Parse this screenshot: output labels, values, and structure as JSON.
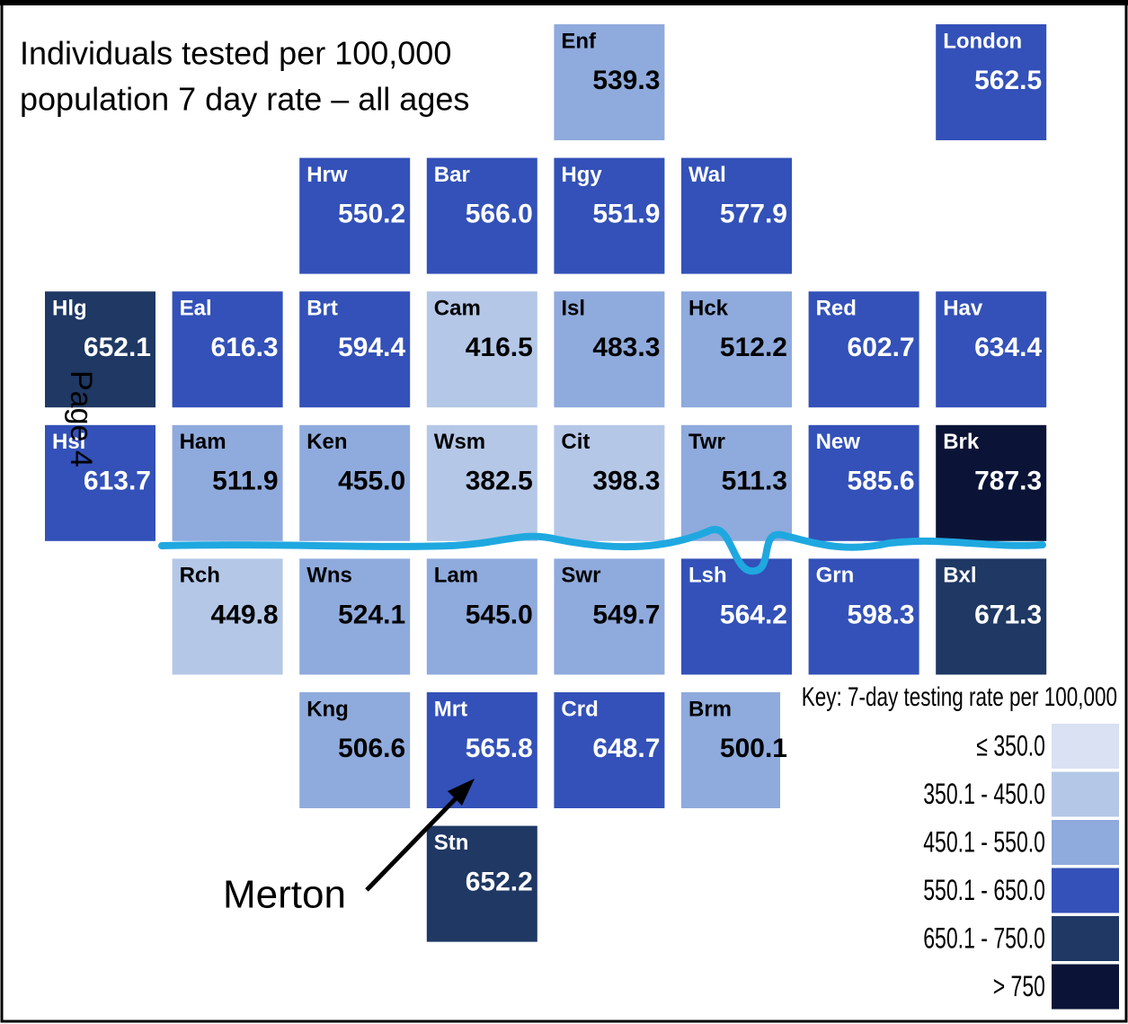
{
  "title": [
    "Individuals tested per 100,000",
    "population 7 day rate – all ages"
  ],
  "page_label": "Page 4",
  "annotation": "Merton",
  "tiles": [
    {
      "code": "Enf",
      "value": "539.3",
      "col": 4,
      "row": 0,
      "color": "#8faadc"
    },
    {
      "code": "London",
      "value": "562.5",
      "col": 7,
      "row": 0,
      "color": "#3351b8"
    },
    {
      "code": "Hrw",
      "value": "550.2",
      "col": 2,
      "row": 1,
      "color": "#3351b8"
    },
    {
      "code": "Bar",
      "value": "566.0",
      "col": 3,
      "row": 1,
      "color": "#3351b8"
    },
    {
      "code": "Hgy",
      "value": "551.9",
      "col": 4,
      "row": 1,
      "color": "#3351b8"
    },
    {
      "code": "Wal",
      "value": "577.9",
      "col": 5,
      "row": 1,
      "color": "#3351b8"
    },
    {
      "code": "Hlg",
      "value": "652.1",
      "col": 0,
      "row": 2,
      "color": "#1f3864"
    },
    {
      "code": "Eal",
      "value": "616.3",
      "col": 1,
      "row": 2,
      "color": "#3351b8"
    },
    {
      "code": "Brt",
      "value": "594.4",
      "col": 2,
      "row": 2,
      "color": "#3351b8"
    },
    {
      "code": "Cam",
      "value": "416.5",
      "col": 3,
      "row": 2,
      "color": "#b4c7e7"
    },
    {
      "code": "Isl",
      "value": "483.3",
      "col": 4,
      "row": 2,
      "color": "#8faadc"
    },
    {
      "code": "Hck",
      "value": "512.2",
      "col": 5,
      "row": 2,
      "color": "#8faadc"
    },
    {
      "code": "Red",
      "value": "602.7",
      "col": 6,
      "row": 2,
      "color": "#3351b8"
    },
    {
      "code": "Hav",
      "value": "634.4",
      "col": 7,
      "row": 2,
      "color": "#3351b8"
    },
    {
      "code": "Hsl",
      "value": "613.7",
      "col": 0,
      "row": 3,
      "color": "#3351b8"
    },
    {
      "code": "Ham",
      "value": "511.9",
      "col": 1,
      "row": 3,
      "color": "#8faadc"
    },
    {
      "code": "Ken",
      "value": "455.0",
      "col": 2,
      "row": 3,
      "color": "#8faadc"
    },
    {
      "code": "Wsm",
      "value": "382.5",
      "col": 3,
      "row": 3,
      "color": "#b4c7e7"
    },
    {
      "code": "Cit",
      "value": "398.3",
      "col": 4,
      "row": 3,
      "color": "#b4c7e7"
    },
    {
      "code": "Twr",
      "value": "511.3",
      "col": 5,
      "row": 3,
      "color": "#8faadc"
    },
    {
      "code": "New",
      "value": "585.6",
      "col": 6,
      "row": 3,
      "color": "#3351b8"
    },
    {
      "code": "Brk",
      "value": "787.3",
      "col": 7,
      "row": 3,
      "color": "#0b1437"
    },
    {
      "code": "Rch",
      "value": "449.8",
      "col": 1,
      "row": 4,
      "color": "#b4c7e7"
    },
    {
      "code": "Wns",
      "value": "524.1",
      "col": 2,
      "row": 4,
      "color": "#8faadc"
    },
    {
      "code": "Lam",
      "value": "545.0",
      "col": 3,
      "row": 4,
      "color": "#8faadc"
    },
    {
      "code": "Swr",
      "value": "549.7",
      "col": 4,
      "row": 4,
      "color": "#8faadc"
    },
    {
      "code": "Lsh",
      "value": "564.2",
      "col": 5,
      "row": 4,
      "color": "#3351b8"
    },
    {
      "code": "Grn",
      "value": "598.3",
      "col": 6,
      "row": 4,
      "color": "#3351b8"
    },
    {
      "code": "Bxl",
      "value": "671.3",
      "col": 7,
      "row": 4,
      "color": "#1f3864"
    },
    {
      "code": "Kng",
      "value": "506.6",
      "col": 2,
      "row": 5,
      "color": "#8faadc"
    },
    {
      "code": "Mrt",
      "value": "565.8",
      "col": 3,
      "row": 5,
      "color": "#3351b8"
    },
    {
      "code": "Crd",
      "value": "648.7",
      "col": 4,
      "row": 5,
      "color": "#3351b8"
    },
    {
      "code": "Brm",
      "value": "500.1",
      "col": 5,
      "row": 5,
      "color": "#8faadc"
    },
    {
      "code": "Stn",
      "value": "652.2",
      "col": 3,
      "row": 6,
      "color": "#1f3864"
    }
  ],
  "legend": {
    "title": "Key: 7-day testing rate per 100,000",
    "entries": [
      {
        "label": "≤ 350.0",
        "color": "#d9e1f2"
      },
      {
        "label": "350.1 - 450.0",
        "color": "#b4c7e7"
      },
      {
        "label": "450.1 - 550.0",
        "color": "#8faadc"
      },
      {
        "label": "550.1  - 650.0",
        "color": "#3351b8"
      },
      {
        "label": "650.1 - 750.0",
        "color": "#1f3864"
      },
      {
        "label": "> 750",
        "color": "#0b1437"
      }
    ]
  }
}
